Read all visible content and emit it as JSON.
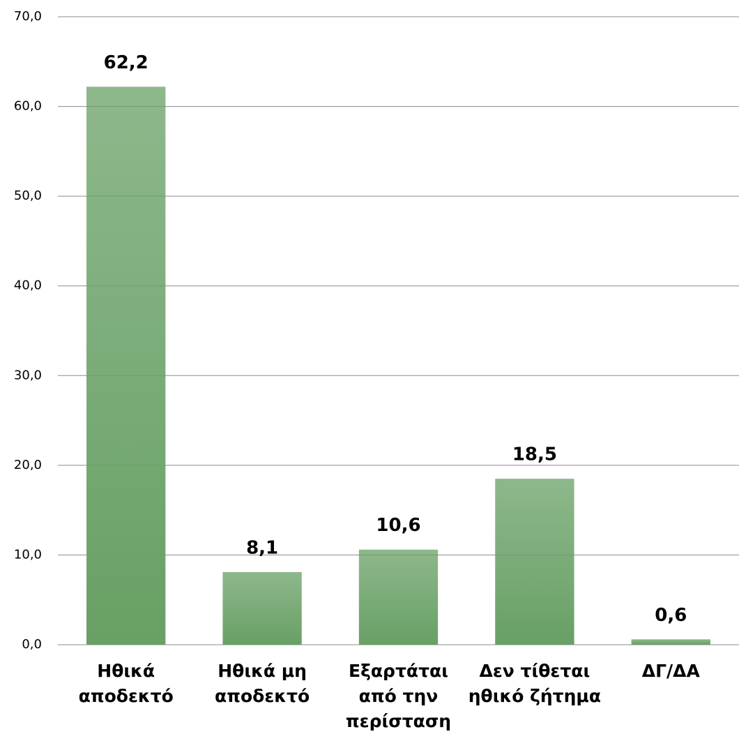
{
  "chart_data": {
    "type": "bar",
    "categories": [
      "Ηθικά αποδεκτό",
      "Ηθικά μη αποδεκτό",
      "Εξαρτάται από την περίσταση",
      "Δεν τίθεται ηθικό ζήτημα",
      "ΔΓ/ΔΑ"
    ],
    "values": [
      62.2,
      8.1,
      10.6,
      18.5,
      0.6
    ],
    "value_labels": [
      "62,2",
      "8,1",
      "10,6",
      "18,5",
      "0,6"
    ],
    "color": "#68a065",
    "ylim": [
      0,
      70
    ],
    "yticks": [
      {
        "value": 0,
        "label": "0,0"
      },
      {
        "value": 10,
        "label": "10,0"
      },
      {
        "value": 20,
        "label": "20,0"
      },
      {
        "value": 30,
        "label": "30,0"
      },
      {
        "value": 40,
        "label": "40,0"
      },
      {
        "value": 50,
        "label": "50,0"
      },
      {
        "value": 60,
        "label": "60,0"
      },
      {
        "value": 70,
        "label": "70,0"
      }
    ],
    "grid": true
  }
}
